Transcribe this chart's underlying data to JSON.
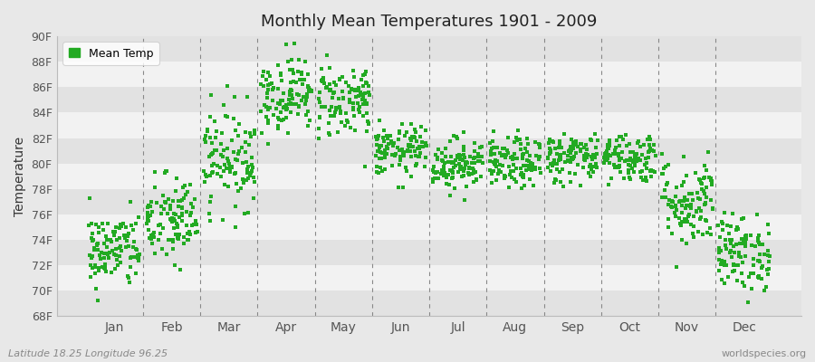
{
  "title": "Monthly Mean Temperatures 1901 - 2009",
  "ylabel": "Temperature",
  "xlabel_months": [
    "Jan",
    "Feb",
    "Mar",
    "Apr",
    "May",
    "Jun",
    "Jul",
    "Aug",
    "Sep",
    "Oct",
    "Nov",
    "Dec"
  ],
  "ylim": [
    68,
    90
  ],
  "yticks": [
    68,
    70,
    72,
    74,
    76,
    78,
    80,
    82,
    84,
    86,
    88,
    90
  ],
  "ytick_labels": [
    "68F",
    "70F",
    "72F",
    "74F",
    "76F",
    "78F",
    "80F",
    "82F",
    "84F",
    "86F",
    "88F",
    "90F"
  ],
  "dot_color": "#22aa22",
  "bg_color": "#e8e8e8",
  "band_white": "#f2f2f2",
  "band_gray": "#e2e2e2",
  "legend_label": "Mean Temp",
  "subtitle_left": "Latitude 18.25 Longitude 96.25",
  "subtitle_right": "worldspecies.org",
  "num_years": 109,
  "monthly_means": [
    73.2,
    75.5,
    80.5,
    85.5,
    85.0,
    81.0,
    80.0,
    80.0,
    80.5,
    80.5,
    77.0,
    73.0
  ],
  "monthly_stds": [
    1.5,
    1.8,
    2.0,
    1.5,
    1.5,
    1.0,
    1.0,
    1.0,
    1.0,
    1.0,
    1.8,
    1.5
  ],
  "seed": 42,
  "xlim_left": -0.5,
  "xlim_right": 12.5
}
